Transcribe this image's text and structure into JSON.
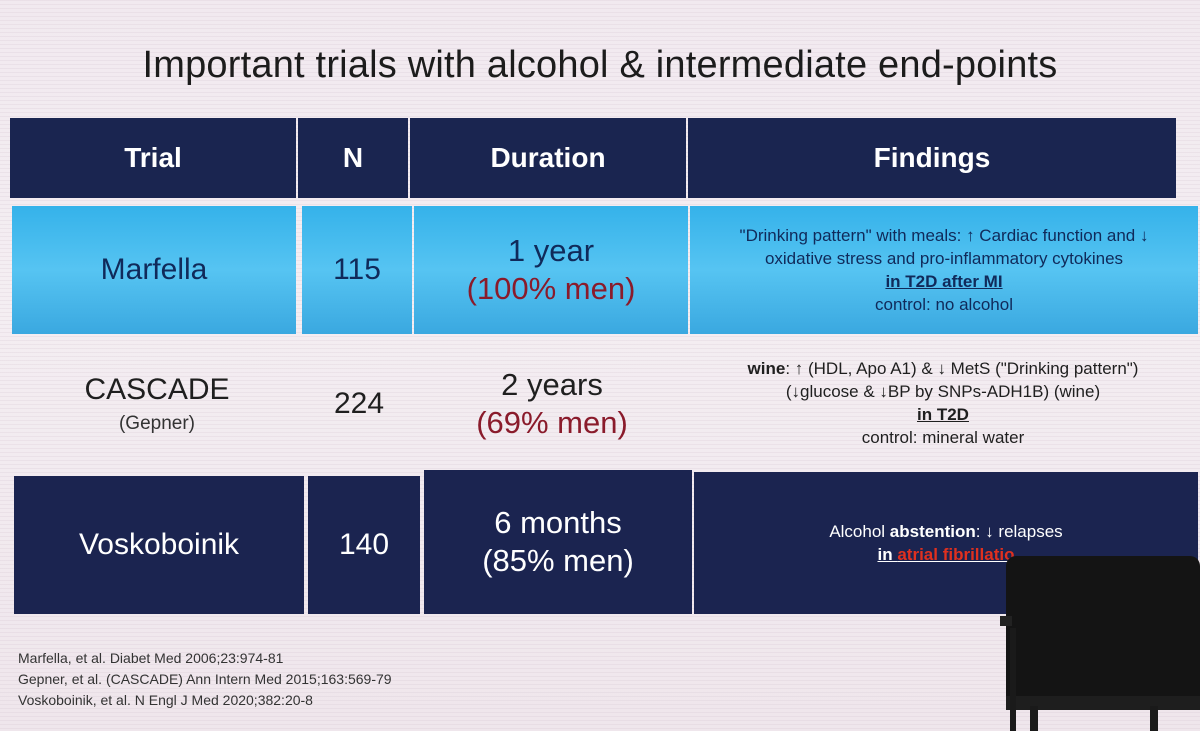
{
  "title": "Important trials with alcohol & intermediate end-points",
  "table": {
    "headers": [
      "Trial",
      "N",
      "Duration",
      "Findings"
    ],
    "rows": [
      {
        "trial": "Marfella",
        "n": "115",
        "duration": "1 year",
        "men": "(100% men)",
        "findings": {
          "line1": "\"Drinking pattern\" with meals: ↑ Cardiac function and ↓",
          "line2": "oxidative stress and pro-inflammatory cytokines",
          "line3": "in T2D after MI",
          "line4": "control: no alcohol"
        }
      },
      {
        "trial": "CASCADE",
        "trial_sub": "(Gepner)",
        "n": "224",
        "duration": "2 years",
        "men": "(69% men)",
        "findings": {
          "line1_bold": "wine",
          "line1_rest": ": ↑ (HDL, Apo A1) & ↓ MetS (\"Drinking pattern\")",
          "line2": "(↓glucose & ↓BP by SNPs-ADH1B) (wine)",
          "line3": "in T2D",
          "line4": "control: mineral water"
        }
      },
      {
        "trial": "Voskoboinik",
        "n": "140",
        "duration": "6 months",
        "men": "(85% men)",
        "findings": {
          "line1_pre": "Alcohol ",
          "line1_bold": "abstention",
          "line1_post": ": ↓ relapses",
          "line2_pre": "in ",
          "line2_red": "atrial fibrillatio"
        }
      }
    ]
  },
  "references": [
    "Marfella, et al. Diabet Med 2006;23:974-81",
    "Gepner, et al. (CASCADE)  Ann Intern Med 2015;163:569-79",
    "Voskoboinik, et al. N Engl J Med 2020;382:20-8"
  ],
  "colors": {
    "header_navy": "#1a2550",
    "highlight_blue": "#46b8ee",
    "men_red": "#8a1b2b",
    "accent_red": "#e0301f"
  }
}
